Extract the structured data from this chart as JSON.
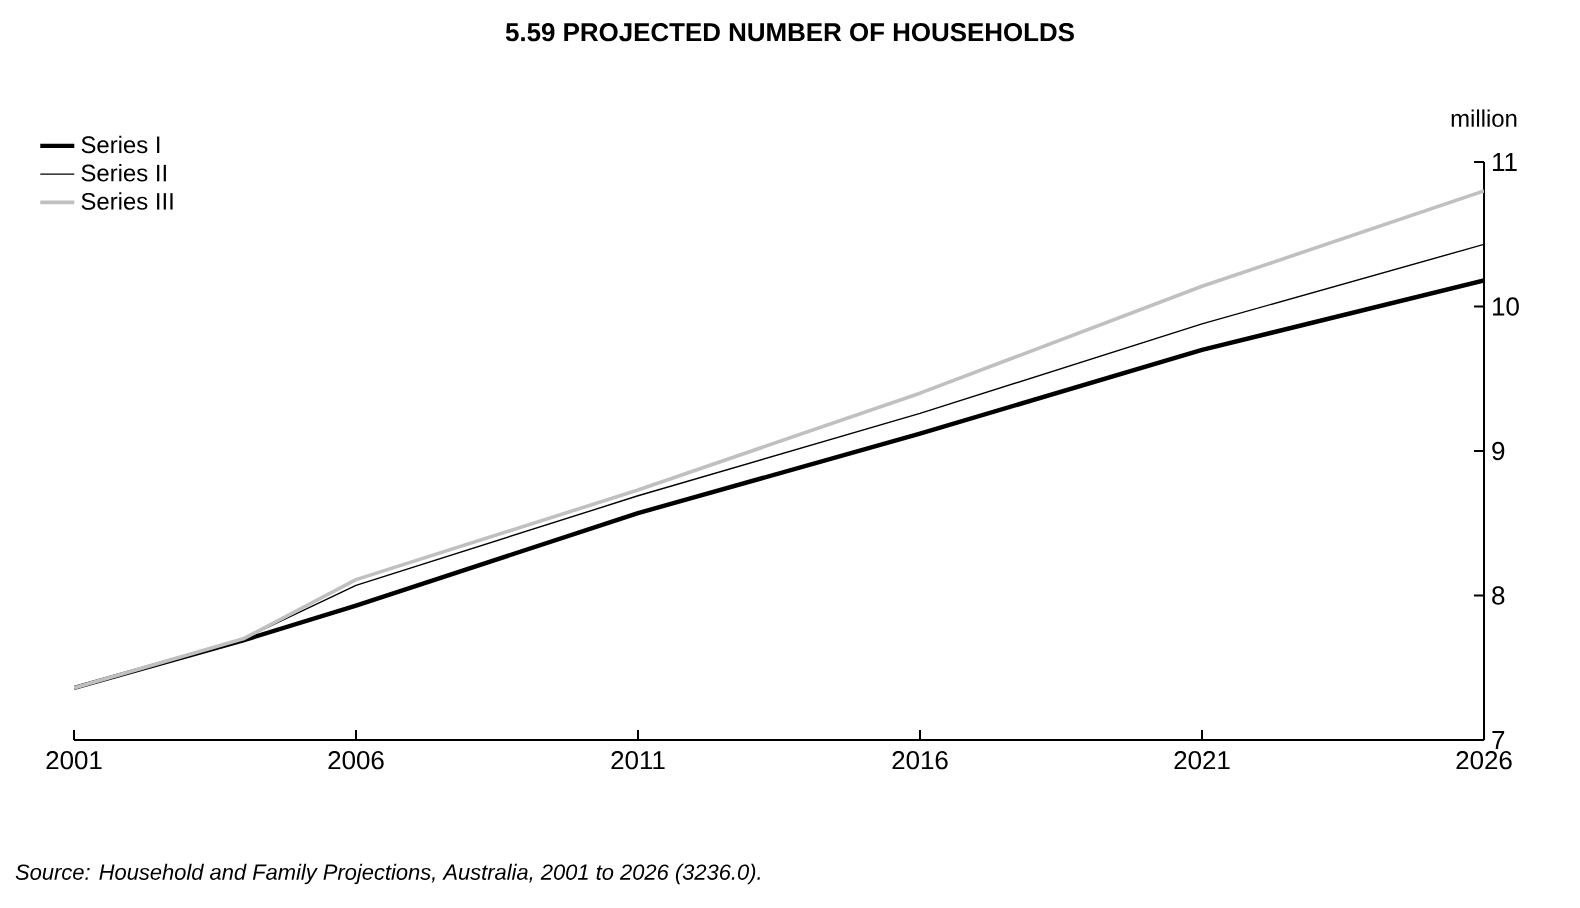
{
  "chart_data": {
    "type": "line",
    "title": "5.59   PROJECTED NUMBER OF HOUSEHOLDS",
    "ylabel": "million",
    "x": [
      2001,
      2004,
      2006,
      2011,
      2016,
      2021,
      2026
    ],
    "series": [
      {
        "name": "Series I",
        "color": "#000000",
        "values": [
          7.36,
          7.69,
          7.93,
          8.57,
          9.12,
          9.7,
          10.18
        ]
      },
      {
        "name": "Series II",
        "color": "#000000",
        "values": [
          7.36,
          7.7,
          8.07,
          8.69,
          9.26,
          9.88,
          10.43
        ]
      },
      {
        "name": "Series III",
        "color": "#c0c0c0",
        "values": [
          7.36,
          7.7,
          8.11,
          8.73,
          9.4,
          10.14,
          10.8
        ]
      }
    ],
    "xlim": [
      2001,
      2026
    ],
    "xticks": [
      2001,
      2006,
      2011,
      2016,
      2021,
      2026
    ],
    "ylim": [
      7,
      11
    ],
    "yticks": [
      7,
      8,
      9,
      10,
      11
    ],
    "legend": "top left",
    "grid": false,
    "annotations": [
      "Source: Household and Family Projections, Australia, 2001 to 2026 (3236.0)."
    ]
  }
}
